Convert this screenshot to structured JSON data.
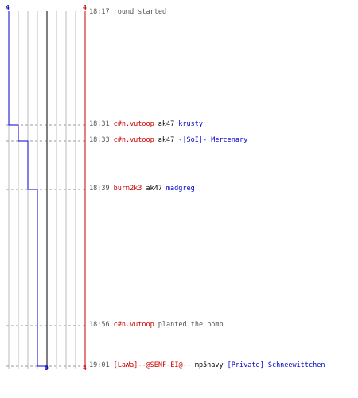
{
  "counts": {
    "left_top": "4",
    "right_top": "4",
    "left_bottom": "0",
    "right_bottom": "4"
  },
  "events": [
    {
      "time": "18:17",
      "parts": [
        {
          "text": "round started",
          "role": "action"
        }
      ]
    },
    {
      "time": "18:31",
      "parts": [
        {
          "text": "c#n.vutoop",
          "role": "t"
        },
        {
          "text": "ak47",
          "role": "weapon"
        },
        {
          "text": "krusty",
          "role": "ct"
        }
      ]
    },
    {
      "time": "18:33",
      "parts": [
        {
          "text": "c#n.vutoop",
          "role": "t"
        },
        {
          "text": "ak47",
          "role": "weapon"
        },
        {
          "text": "-|SoI|- Mercenary",
          "role": "ct"
        }
      ]
    },
    {
      "time": "18:39",
      "parts": [
        {
          "text": "burn2k3",
          "role": "t"
        },
        {
          "text": "ak47",
          "role": "weapon"
        },
        {
          "text": "madgreg",
          "role": "ct"
        }
      ]
    },
    {
      "time": "18:56",
      "parts": [
        {
          "text": "c#n.vutoop",
          "role": "t"
        },
        {
          "text": "planted the bomb",
          "role": "action"
        }
      ]
    },
    {
      "time": "19:01",
      "parts": [
        {
          "text": "[LaWa]--@SENF-EI@--",
          "role": "t"
        },
        {
          "text": "mp5navy",
          "role": "weapon"
        },
        {
          "text": "[Private] Schneewittchen",
          "role": "ct"
        }
      ]
    }
  ],
  "colors": {
    "t_team": "#cc0000",
    "ct_team": "#0000cc",
    "blue_line": "#0000cc",
    "red_line": "#cc0000",
    "grid": "#bbbbbb",
    "center": "#555555",
    "guide": "#999999"
  }
}
